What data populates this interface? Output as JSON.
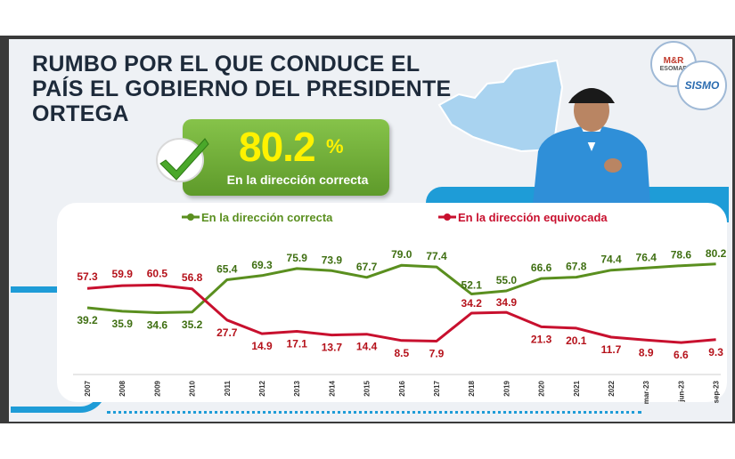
{
  "title": "RUMBO POR EL QUE CONDUCE EL PAÍS EL GOBIERNO DEL PRESIDENTE ORTEGA",
  "kpi": {
    "value": "80.2",
    "unit": "%",
    "label": "En la dirección correcta",
    "icon": "check-icon"
  },
  "logos": [
    {
      "name": "M&R Consultores",
      "text": "M&R",
      "subtext": "ESOMAR"
    },
    {
      "name": "SISMO",
      "text": "SISMO"
    }
  ],
  "colors": {
    "correct": "#5a8f1f",
    "wrong": "#c8102e",
    "accent": "#1e9cd7",
    "kpi_bg": "#6fae34",
    "kpi_text": "#fff200"
  },
  "chart_data": {
    "type": "line",
    "categories": [
      "2007",
      "2008",
      "2009",
      "2010",
      "2011",
      "2012",
      "2013",
      "2014",
      "2015",
      "2016",
      "2017",
      "2018",
      "2019",
      "2020",
      "2021",
      "2022",
      "mar-23",
      "jun-23",
      "sep-23"
    ],
    "series": [
      {
        "name": "En la dirección correcta",
        "color": "#5a8f1f",
        "values": [
          39.2,
          35.9,
          34.6,
          35.2,
          65.4,
          69.3,
          75.9,
          73.9,
          67.7,
          79.0,
          77.4,
          52.1,
          55.0,
          66.6,
          67.8,
          74.4,
          76.4,
          78.6,
          80.2
        ],
        "labels": [
          "39.2",
          "35.9",
          "34.6",
          "35.2",
          "65.4",
          "69.3",
          "75.9",
          "73.9",
          "67.7",
          "79.0",
          "77.4",
          "52.1",
          "55.0",
          "66.6",
          "67.8",
          "74.4",
          "76.4",
          "78.6",
          "80.2"
        ]
      },
      {
        "name": "En la dirección equivocada",
        "color": "#c8102e",
        "values": [
          57.3,
          59.9,
          60.5,
          56.8,
          27.7,
          14.9,
          17.1,
          13.7,
          14.4,
          8.5,
          7.9,
          34.2,
          34.9,
          21.3,
          20.1,
          11.7,
          8.9,
          6.6,
          9.3
        ],
        "labels": [
          "57.3",
          "59.9",
          "60.5",
          "56.8",
          "27.7",
          "14.9",
          "17.1",
          "13.7",
          "14.4",
          "8.5",
          "7.9",
          "34.2",
          "34.9",
          "21.3",
          "20.1",
          "11.7",
          "8.9",
          "6.6",
          "9.3"
        ]
      }
    ],
    "legend_position": "top",
    "grid": false
  }
}
